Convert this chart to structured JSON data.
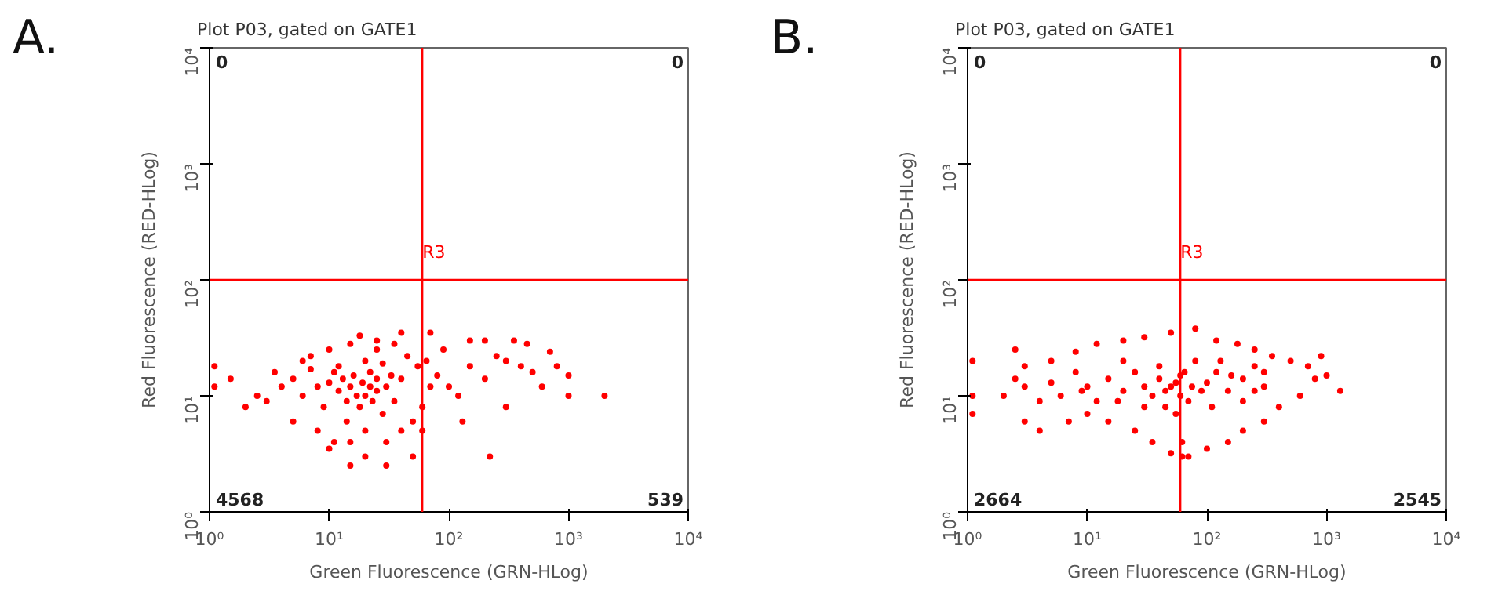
{
  "chart_data": [
    {
      "type": "scatter",
      "title": "Plot P03, gated on GATE1",
      "xlabel": "Green Fluorescence (GRN-HLog)",
      "ylabel": "Red Fluorescence (RED-HLog)",
      "log": "xy",
      "grid": false,
      "marker": "circle",
      "xlim": [
        1,
        10000
      ],
      "ylim": [
        1,
        10000
      ],
      "xticks": [
        {
          "value": 1,
          "label": "10⁰"
        },
        {
          "value": 10,
          "label": "10¹"
        },
        {
          "value": 100,
          "label": "10²"
        },
        {
          "value": 1000,
          "label": "10³"
        },
        {
          "value": 10000,
          "label": "10⁴"
        }
      ],
      "yticks": [
        {
          "value": 1,
          "label": "10⁰"
        },
        {
          "value": 10,
          "label": "10¹"
        },
        {
          "value": 100,
          "label": "10²"
        },
        {
          "value": 1000,
          "label": "10³"
        },
        {
          "value": 10000,
          "label": "10⁴"
        }
      ],
      "ref_lines": [
        {
          "axis": "x",
          "value": 60,
          "color": "#ff0000"
        },
        {
          "axis": "y",
          "value": 100,
          "color": "#ff0000"
        }
      ],
      "annotations": [
        "A.",
        {
          "text": "R3",
          "x": 60,
          "y": 140
        },
        "0",
        "0",
        "4568",
        "539"
      ],
      "series": [
        {
          "color": "#ff0000",
          "x": [
            15,
            20,
            25,
            18,
            12,
            30,
            22,
            16,
            10,
            35,
            40,
            28,
            14,
            20,
            25,
            12,
            8,
            9,
            6,
            5,
            7,
            4,
            3,
            5,
            8,
            11,
            15,
            20,
            30,
            40,
            50,
            60,
            70,
            80,
            55,
            45,
            35,
            25,
            18,
            15,
            10,
            7,
            6,
            100,
            120,
            150,
            200,
            250,
            300,
            400,
            500,
            600,
            700,
            800,
            1000,
            350,
            450,
            150,
            200,
            90,
            65,
            60,
            50,
            30,
            15,
            20,
            10,
            2,
            1.5,
            2.5,
            3.5,
            1000,
            2000,
            300,
            130,
            220,
            40,
            70,
            1.1,
            1.1,
            25,
            22,
            19,
            17,
            23,
            33,
            14,
            28,
            13,
            11
          ],
          "values": [
            12,
            10,
            14,
            8,
            11,
            12,
            16,
            15,
            13,
            9,
            14,
            7,
            6,
            20,
            25,
            18,
            12,
            8,
            10,
            14,
            17,
            12,
            9,
            6,
            5,
            4,
            4,
            5,
            4,
            5,
            6,
            8,
            12,
            15,
            18,
            22,
            28,
            30,
            33,
            28,
            25,
            22,
            20,
            12,
            10,
            18,
            14,
            22,
            20,
            18,
            16,
            12,
            24,
            18,
            15,
            30,
            28,
            30,
            30,
            25,
            20,
            5,
            3,
            2.5,
            2.5,
            3,
            3.5,
            8,
            14,
            10,
            16,
            10,
            10,
            8,
            6,
            3,
            35,
            35,
            18,
            12,
            11,
            12,
            13,
            10,
            9,
            15,
            9,
            19,
            14,
            16
          ]
        }
      ]
    },
    {
      "type": "scatter",
      "title": "Plot P03, gated on GATE1",
      "xlabel": "Green Fluorescence (GRN-HLog)",
      "ylabel": "Red Fluorescence (RED-HLog)",
      "log": "xy",
      "grid": false,
      "marker": "circle",
      "xlim": [
        1,
        10000
      ],
      "ylim": [
        1,
        10000
      ],
      "xticks": [
        {
          "value": 1,
          "label": "10⁰"
        },
        {
          "value": 10,
          "label": "10¹"
        },
        {
          "value": 100,
          "label": "10²"
        },
        {
          "value": 1000,
          "label": "10³"
        },
        {
          "value": 10000,
          "label": "10⁴"
        }
      ],
      "yticks": [
        {
          "value": 1,
          "label": "10⁰"
        },
        {
          "value": 10,
          "label": "10¹"
        },
        {
          "value": 100,
          "label": "10²"
        },
        {
          "value": 1000,
          "label": "10³"
        },
        {
          "value": 10000,
          "label": "10⁴"
        }
      ],
      "ref_lines": [
        {
          "axis": "x",
          "value": 60,
          "color": "#ff0000"
        },
        {
          "axis": "y",
          "value": 100,
          "color": "#ff0000"
        }
      ],
      "annotations": [
        "B.",
        {
          "text": "R3",
          "x": 60,
          "y": 140
        },
        "0",
        "0",
        "2664",
        "2545"
      ],
      "series": [
        {
          "color": "#ff0000",
          "x": [
            50,
            60,
            40,
            70,
            30,
            100,
            120,
            150,
            200,
            250,
            300,
            20,
            15,
            10,
            8,
            6,
            5,
            4,
            3,
            2.5,
            2,
            3,
            5,
            8,
            12,
            20,
            30,
            50,
            80,
            120,
            180,
            250,
            350,
            500,
            700,
            800,
            600,
            400,
            300,
            200,
            150,
            100,
            70,
            50,
            35,
            25,
            15,
            10,
            7,
            4,
            3,
            1.1,
            1.1,
            1.1,
            2.5,
            1000,
            1300,
            900,
            45,
            55,
            65,
            80,
            90,
            110,
            130,
            160,
            40,
            30,
            25,
            35,
            55,
            60,
            75,
            45,
            62,
            62,
            20,
            18,
            12,
            9,
            200,
            250,
            300
          ],
          "values": [
            12,
            10,
            14,
            9,
            12,
            13,
            16,
            11,
            14,
            18,
            12,
            11,
            14,
            12,
            16,
            10,
            13,
            9,
            12,
            14,
            10,
            18,
            20,
            24,
            28,
            30,
            32,
            35,
            38,
            30,
            28,
            25,
            22,
            20,
            18,
            14,
            10,
            8,
            6,
            5,
            4,
            3.5,
            3,
            3.2,
            4,
            5,
            6,
            7,
            6,
            5,
            6,
            20,
            10,
            7,
            25,
            15,
            11,
            22,
            8,
            7,
            16,
            20,
            11,
            8,
            20,
            15,
            18,
            8,
            16,
            10,
            13,
            15,
            12,
            11,
            4,
            3,
            20,
            9,
            9,
            11,
            9,
            11,
            16
          ]
        }
      ]
    }
  ]
}
